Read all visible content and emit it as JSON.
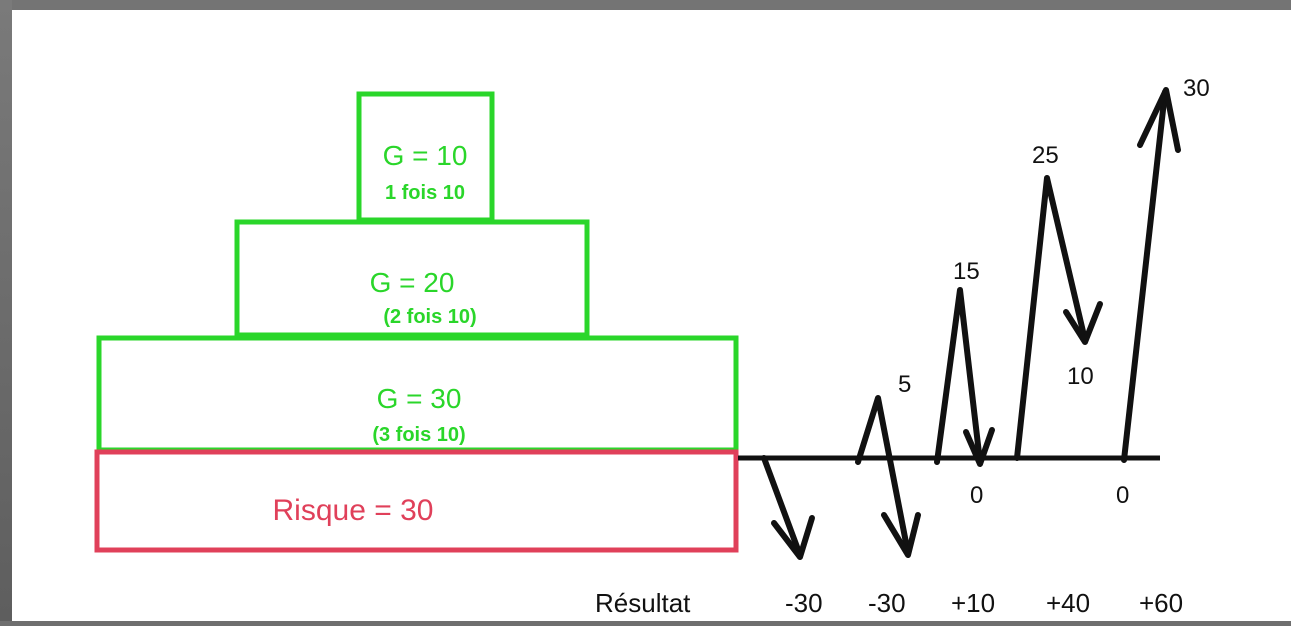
{
  "blocks": {
    "top": {
      "title": "G = 10",
      "subtitle": "1 fois 10"
    },
    "middle": {
      "title": "G = 20",
      "subtitle": "(2 fois 10)"
    },
    "bottom": {
      "title": "G = 30",
      "subtitle": "(3 fois 10)"
    },
    "risk": {
      "label": "Risque = 30"
    }
  },
  "peaks": [
    "5",
    "15",
    "25",
    "30"
  ],
  "troughs": [
    "0",
    "10",
    "0"
  ],
  "results": {
    "label": "Résultat",
    "values": [
      "-30",
      "-30",
      "+10",
      "+40",
      "+60"
    ]
  },
  "colors": {
    "green": "#2ad62a",
    "red": "#e0405a",
    "black": "#111111"
  }
}
